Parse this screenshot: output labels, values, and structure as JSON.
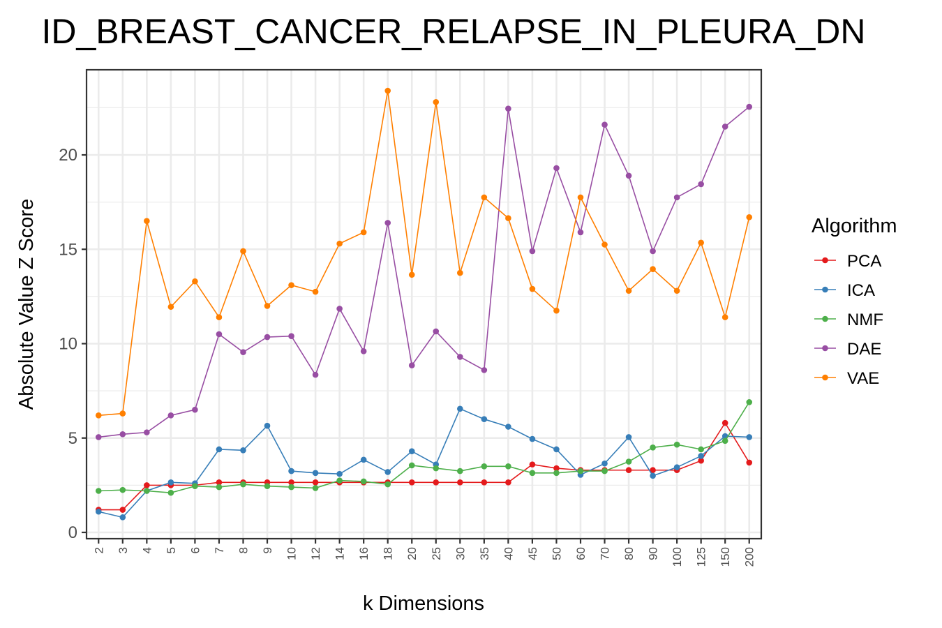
{
  "chart_data": {
    "type": "line",
    "title": "ID_BREAST_CANCER_RELAPSE_IN_PLEURA_DN",
    "xlabel": "k Dimensions",
    "ylabel": "Absolute Value Z Score",
    "categories": [
      "2",
      "3",
      "4",
      "5",
      "6",
      "7",
      "8",
      "9",
      "10",
      "12",
      "14",
      "16",
      "18",
      "20",
      "25",
      "30",
      "35",
      "40",
      "45",
      "50",
      "60",
      "70",
      "80",
      "90",
      "100",
      "125",
      "150",
      "200"
    ],
    "ylim": [
      -0.5,
      24
    ],
    "yticks": [
      0,
      5,
      10,
      15,
      20
    ],
    "grid": true,
    "legend_title": "Algorithm",
    "legend_position": "right",
    "series": [
      {
        "name": "PCA",
        "color": "#e41a1c",
        "values": [
          1.2,
          1.2,
          2.5,
          2.5,
          2.5,
          2.65,
          2.65,
          2.65,
          2.65,
          2.65,
          2.65,
          2.65,
          2.65,
          2.65,
          2.65,
          2.65,
          2.65,
          2.65,
          3.6,
          3.4,
          3.3,
          3.3,
          3.3,
          3.3,
          3.3,
          3.8,
          5.8,
          3.7
        ]
      },
      {
        "name": "ICA",
        "color": "#377eb8",
        "values": [
          1.1,
          0.8,
          2.2,
          2.65,
          2.6,
          4.4,
          4.35,
          5.65,
          3.25,
          3.15,
          3.1,
          3.85,
          3.2,
          4.3,
          3.6,
          6.55,
          6.0,
          5.6,
          4.95,
          4.4,
          3.05,
          3.65,
          5.05,
          3.0,
          3.45,
          4.05,
          5.1,
          5.05
        ]
      },
      {
        "name": "NMF",
        "color": "#4daf4a",
        "values": [
          2.2,
          2.25,
          2.2,
          2.1,
          2.45,
          2.4,
          2.55,
          2.45,
          2.4,
          2.35,
          2.75,
          2.7,
          2.55,
          3.55,
          3.4,
          3.25,
          3.5,
          3.5,
          3.15,
          3.15,
          3.25,
          3.25,
          3.75,
          4.5,
          4.65,
          4.4,
          4.85,
          6.9
        ]
      },
      {
        "name": "DAE",
        "color": "#984ea3",
        "values": [
          5.05,
          5.2,
          5.3,
          6.2,
          6.5,
          10.5,
          9.55,
          10.35,
          10.4,
          8.35,
          11.85,
          9.6,
          16.4,
          8.85,
          10.65,
          9.3,
          8.6,
          22.45,
          14.9,
          19.3,
          15.9,
          21.6,
          18.9,
          14.9,
          17.75,
          18.45,
          21.5,
          22.55
        ]
      },
      {
        "name": "VAE",
        "color": "#ff7f00",
        "values": [
          6.2,
          6.3,
          16.5,
          11.95,
          13.3,
          11.4,
          14.9,
          12.0,
          13.1,
          12.75,
          15.3,
          15.9,
          23.4,
          13.65,
          22.8,
          13.75,
          17.75,
          16.65,
          12.9,
          11.75,
          17.75,
          15.25,
          12.8,
          13.95,
          12.8,
          15.35,
          11.4,
          16.7
        ]
      }
    ]
  }
}
